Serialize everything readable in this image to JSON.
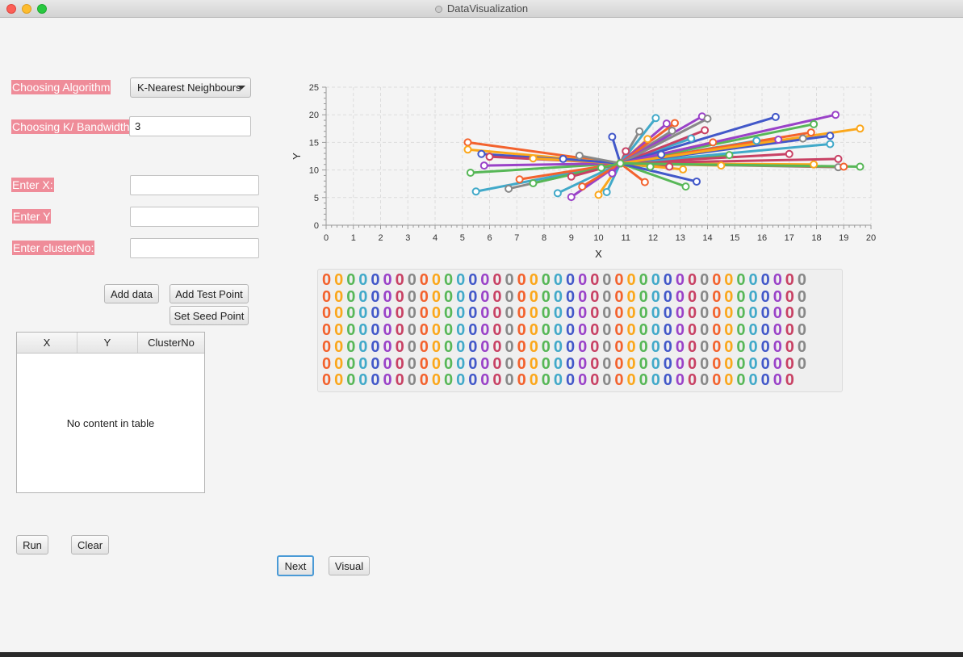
{
  "window": {
    "title": "DataVisualization"
  },
  "controls": {
    "algorithm_label": "Choosing Algorithm",
    "algorithm_value": "K-Nearest Neighbours",
    "k_label": "Choosing K/ Bandwidth",
    "k_value": "3",
    "x_label": "Enter X:",
    "x_value": "",
    "y_label": "Enter Y",
    "y_value": "",
    "cluster_label": "Enter clusterNo:",
    "cluster_value": ""
  },
  "buttons": {
    "add_data": "Add data",
    "add_test_point": "Add Test Point",
    "set_seed_point": "Set Seed Point",
    "run": "Run",
    "clear": "Clear",
    "next": "Next",
    "visual": "Visual"
  },
  "table": {
    "columns": [
      "X",
      "Y",
      "ClusterNo"
    ],
    "placeholder": "No content in table"
  },
  "colors": {
    "label_highlight": "#ef8c99",
    "series_palette": [
      "#f3622d",
      "#fba71b",
      "#57b757",
      "#41a9c9",
      "#4258c9",
      "#9a42c8",
      "#c84164",
      "#888888"
    ]
  },
  "chart_data": {
    "type": "line",
    "xlabel": "X",
    "ylabel": "Y",
    "xlim": [
      0,
      20
    ],
    "ylim": [
      0,
      25
    ],
    "x_ticks": [
      "0",
      "1",
      "2",
      "3",
      "4",
      "5",
      "6",
      "7",
      "8",
      "9",
      "10",
      "11",
      "12",
      "13",
      "14",
      "15",
      "16",
      "17",
      "18",
      "19",
      "20"
    ],
    "y_ticks": [
      "0",
      "5",
      "10",
      "15",
      "20",
      "25"
    ],
    "grid": true,
    "legend_placement": "bottom",
    "series": [
      {
        "x": [
          5.2,
          10.8
        ],
        "y": [
          15.0,
          11.2
        ]
      },
      {
        "x": [
          5.2,
          10.8
        ],
        "y": [
          13.7,
          11.2
        ]
      },
      {
        "x": [
          5.3,
          10.8
        ],
        "y": [
          9.5,
          11.2
        ]
      },
      {
        "x": [
          5.5,
          10.8
        ],
        "y": [
          6.1,
          11.2
        ]
      },
      {
        "x": [
          5.7,
          10.8
        ],
        "y": [
          12.9,
          11.2
        ]
      },
      {
        "x": [
          5.8,
          10.8
        ],
        "y": [
          10.8,
          11.2
        ]
      },
      {
        "x": [
          6.0,
          10.8
        ],
        "y": [
          12.4,
          11.2
        ]
      },
      {
        "x": [
          6.7,
          10.8
        ],
        "y": [
          6.6,
          11.2
        ]
      },
      {
        "x": [
          7.1,
          10.8
        ],
        "y": [
          8.3,
          11.2
        ]
      },
      {
        "x": [
          7.6,
          10.8
        ],
        "y": [
          12.1,
          11.2
        ]
      },
      {
        "x": [
          7.6,
          10.8
        ],
        "y": [
          7.6,
          11.2
        ]
      },
      {
        "x": [
          8.5,
          10.8
        ],
        "y": [
          5.8,
          11.2
        ]
      },
      {
        "x": [
          8.7,
          10.8
        ],
        "y": [
          12.0,
          11.2
        ]
      },
      {
        "x": [
          9.0,
          10.8
        ],
        "y": [
          5.1,
          11.2
        ]
      },
      {
        "x": [
          9.0,
          10.8
        ],
        "y": [
          8.8,
          11.2
        ]
      },
      {
        "x": [
          9.3,
          10.8
        ],
        "y": [
          12.6,
          11.2
        ]
      },
      {
        "x": [
          9.4,
          10.8
        ],
        "y": [
          7.0,
          11.2
        ]
      },
      {
        "x": [
          10.0,
          10.8
        ],
        "y": [
          5.5,
          11.2
        ]
      },
      {
        "x": [
          10.1,
          10.8
        ],
        "y": [
          10.4,
          11.2
        ]
      },
      {
        "x": [
          10.3,
          10.8
        ],
        "y": [
          6.0,
          11.2
        ]
      },
      {
        "x": [
          10.5,
          10.8
        ],
        "y": [
          16.0,
          11.2
        ]
      },
      {
        "x": [
          10.5,
          10.8
        ],
        "y": [
          9.4,
          11.2
        ]
      },
      {
        "x": [
          11.0,
          10.8
        ],
        "y": [
          13.4,
          11.2
        ]
      },
      {
        "x": [
          11.5,
          10.8
        ],
        "y": [
          17.0,
          11.2
        ]
      },
      {
        "x": [
          11.7,
          10.8
        ],
        "y": [
          7.8,
          11.2
        ]
      },
      {
        "x": [
          11.8,
          10.8
        ],
        "y": [
          15.6,
          11.2
        ]
      },
      {
        "x": [
          11.9,
          10.8
        ],
        "y": [
          10.6,
          11.2
        ]
      },
      {
        "x": [
          12.1,
          10.8
        ],
        "y": [
          19.4,
          11.2
        ]
      },
      {
        "x": [
          12.3,
          10.8
        ],
        "y": [
          12.8,
          11.2
        ]
      },
      {
        "x": [
          12.5,
          10.8
        ],
        "y": [
          18.4,
          11.2
        ]
      },
      {
        "x": [
          12.6,
          10.8
        ],
        "y": [
          10.6,
          11.2
        ]
      },
      {
        "x": [
          12.7,
          10.8
        ],
        "y": [
          17.1,
          11.2
        ]
      },
      {
        "x": [
          12.8,
          10.8
        ],
        "y": [
          18.5,
          11.2
        ]
      },
      {
        "x": [
          13.1,
          10.8
        ],
        "y": [
          10.1,
          11.2
        ]
      },
      {
        "x": [
          13.2,
          10.8
        ],
        "y": [
          7.0,
          11.2
        ]
      },
      {
        "x": [
          13.4,
          10.8
        ],
        "y": [
          15.7,
          11.2
        ]
      },
      {
        "x": [
          13.6,
          10.8
        ],
        "y": [
          7.9,
          11.2
        ]
      },
      {
        "x": [
          13.8,
          10.8
        ],
        "y": [
          19.7,
          11.2
        ]
      },
      {
        "x": [
          13.9,
          10.8
        ],
        "y": [
          17.2,
          11.2
        ]
      },
      {
        "x": [
          14.0,
          10.8
        ],
        "y": [
          19.3,
          11.2
        ]
      },
      {
        "x": [
          14.2,
          10.8
        ],
        "y": [
          15.0,
          11.2
        ]
      },
      {
        "x": [
          14.5,
          10.8
        ],
        "y": [
          10.8,
          11.2
        ]
      },
      {
        "x": [
          14.8,
          10.8
        ],
        "y": [
          12.7,
          11.2
        ]
      },
      {
        "x": [
          15.8,
          10.8
        ],
        "y": [
          15.3,
          11.2
        ]
      },
      {
        "x": [
          16.5,
          10.8
        ],
        "y": [
          19.6,
          11.2
        ]
      },
      {
        "x": [
          16.6,
          10.8
        ],
        "y": [
          15.5,
          11.2
        ]
      },
      {
        "x": [
          17.0,
          10.8
        ],
        "y": [
          12.9,
          11.2
        ]
      },
      {
        "x": [
          17.5,
          10.8
        ],
        "y": [
          15.7,
          11.2
        ]
      },
      {
        "x": [
          17.8,
          10.8
        ],
        "y": [
          16.8,
          11.2
        ]
      },
      {
        "x": [
          17.9,
          10.8
        ],
        "y": [
          11.0,
          11.2
        ]
      },
      {
        "x": [
          17.9,
          10.8
        ],
        "y": [
          18.3,
          11.2
        ]
      },
      {
        "x": [
          18.5,
          10.8
        ],
        "y": [
          14.7,
          11.2
        ]
      },
      {
        "x": [
          18.5,
          10.8
        ],
        "y": [
          16.2,
          11.2
        ]
      },
      {
        "x": [
          18.7,
          10.8
        ],
        "y": [
          20.0,
          11.2
        ]
      },
      {
        "x": [
          18.8,
          10.8
        ],
        "y": [
          12.0,
          11.2
        ]
      },
      {
        "x": [
          18.8,
          10.8
        ],
        "y": [
          10.5,
          11.2
        ]
      },
      {
        "x": [
          19.0,
          10.8
        ],
        "y": [
          10.6,
          11.2
        ]
      },
      {
        "x": [
          19.6,
          10.8
        ],
        "y": [
          17.5,
          11.2
        ]
      },
      {
        "x": [
          19.6,
          10.8
        ],
        "y": [
          10.6,
          11.2
        ]
      }
    ],
    "legend_entries": [
      "0",
      "0",
      "0",
      "0",
      "0",
      "0",
      "0",
      "0",
      "0",
      "0",
      "0",
      "0",
      "0",
      "0",
      "0",
      "0",
      "0",
      "0",
      "0",
      "0",
      "0",
      "0",
      "0",
      "0",
      "0",
      "0",
      "0",
      "0",
      "0",
      "0",
      "0",
      "0",
      "0",
      "0",
      "0",
      "0",
      "0",
      "0",
      "0",
      "0",
      "0",
      "0",
      "0",
      "0",
      "0",
      "0",
      "0",
      "0",
      "0",
      "0",
      "0",
      "0",
      "0",
      "0",
      "0",
      "0",
      "0",
      "0",
      "0",
      "0",
      "0",
      "0",
      "0",
      "0",
      "0",
      "0",
      "0",
      "0",
      "0",
      "0",
      "0",
      "0",
      "0",
      "0",
      "0",
      "0",
      "0",
      "0",
      "0",
      "0",
      "0",
      "0",
      "0",
      "0",
      "0",
      "0",
      "0",
      "0",
      "0",
      "0",
      "0",
      "0",
      "0",
      "0",
      "0",
      "0",
      "0",
      "0",
      "0",
      "0",
      "0",
      "0",
      "0",
      "0",
      "0",
      "0",
      "0",
      "0",
      "0",
      "0",
      "0",
      "0",
      "0",
      "0",
      "0",
      "0",
      "0",
      "0",
      "0",
      "0",
      "0",
      "0",
      "0",
      "0",
      "0",
      "0",
      "0",
      "0",
      "0",
      "0",
      "0",
      "0",
      "0",
      "0",
      "0",
      "0",
      "0",
      "0",
      "0",
      "0",
      "0",
      "0",
      "0",
      "0",
      "0",
      "0",
      "0",
      "0",
      "0",
      "0",
      "0",
      "0",
      "0",
      "0",
      "0",
      "0",
      "0",
      "0",
      "0",
      "0",
      "0",
      "0",
      "0",
      "0",
      "0",
      "0",
      "0",
      "0",
      "0",
      "0",
      "0",
      "0",
      "0",
      "0",
      "0",
      "0",
      "0",
      "0",
      "0",
      "0",
      "0",
      "0",
      "0",
      "0",
      "0",
      "0",
      "0",
      "0",
      "0",
      "0",
      "0",
      "0",
      "0",
      "0",
      "0",
      "0",
      "0",
      "0",
      "0",
      "0",
      "0",
      "0",
      "0",
      "0",
      "0",
      "0",
      "0",
      "0",
      "0",
      "0",
      "0",
      "0",
      "0",
      "0",
      "0",
      "0",
      "0",
      "0",
      "0",
      "0",
      "0",
      "0",
      "0",
      "0",
      "0",
      "0",
      "0",
      "0",
      "0",
      "0",
      "0",
      "0",
      "0",
      "0",
      "0",
      "0",
      "0",
      "0",
      "0",
      "0",
      "0",
      "0",
      "0",
      "0",
      "0",
      "0",
      "0",
      "0",
      "0",
      "0",
      "0",
      "0",
      "0",
      "0",
      "0",
      "0",
      "0",
      "0",
      "0",
      "0",
      "0",
      "0",
      "0",
      "0",
      "0",
      "0",
      "0",
      "0",
      "0",
      "0",
      "0",
      "0",
      "0",
      "0",
      "0",
      "0",
      "0",
      "0",
      "0"
    ]
  }
}
